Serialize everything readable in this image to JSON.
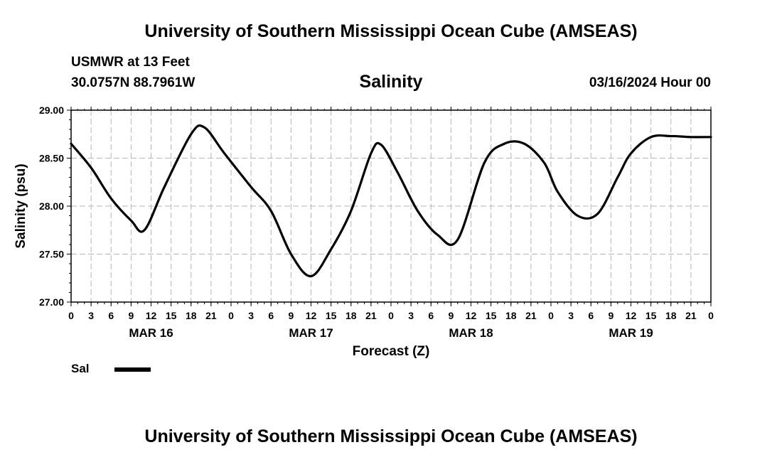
{
  "header": {
    "title": "University of Southern Mississippi Ocean Cube (AMSEAS)",
    "station": "USMWR at 13 Feet",
    "coords": "30.0757N  88.7961W",
    "date": "03/16/2024 Hour 00"
  },
  "footer": {
    "title": "University of Southern Mississippi Ocean Cube (AMSEAS)"
  },
  "legend": {
    "label": "Sal"
  },
  "chart_data": {
    "type": "line",
    "title": "Salinity",
    "xlabel": "Forecast (Z)",
    "ylabel": "Salinity (psu)",
    "xlim": [
      0,
      96
    ],
    "ylim": [
      27.0,
      29.0
    ],
    "grid": true,
    "y_ticks": [
      "27.00",
      "27.50",
      "28.00",
      "28.50",
      "29.00"
    ],
    "x_ticks": [
      "0",
      "3",
      "6",
      "9",
      "12",
      "15",
      "18",
      "21",
      "0",
      "3",
      "6",
      "9",
      "12",
      "15",
      "18",
      "21",
      "0",
      "3",
      "6",
      "9",
      "12",
      "15",
      "18",
      "21",
      "0",
      "3",
      "6",
      "9",
      "12",
      "15",
      "18",
      "21",
      "0"
    ],
    "day_labels": [
      {
        "hour": 12,
        "label": "MAR 16"
      },
      {
        "hour": 36,
        "label": "MAR 17"
      },
      {
        "hour": 60,
        "label": "MAR 18"
      },
      {
        "hour": 84,
        "label": "MAR 19"
      }
    ],
    "series": [
      {
        "name": "Sal",
        "x": [
          0,
          3,
          6,
          9,
          11,
          14,
          18,
          20,
          23,
          27,
          30,
          33,
          36,
          39,
          42,
          45,
          46.5,
          49,
          52,
          55,
          58,
          62,
          65,
          68,
          71,
          73,
          76,
          79,
          82,
          84,
          87,
          90,
          93,
          96
        ],
        "values": [
          28.65,
          28.4,
          28.08,
          27.85,
          27.75,
          28.2,
          28.75,
          28.82,
          28.55,
          28.2,
          27.95,
          27.5,
          27.27,
          27.55,
          27.95,
          28.55,
          28.64,
          28.35,
          27.95,
          27.7,
          27.65,
          28.45,
          28.65,
          28.65,
          28.45,
          28.15,
          27.9,
          27.92,
          28.3,
          28.55,
          28.72,
          28.73,
          28.72,
          28.72
        ]
      }
    ]
  }
}
